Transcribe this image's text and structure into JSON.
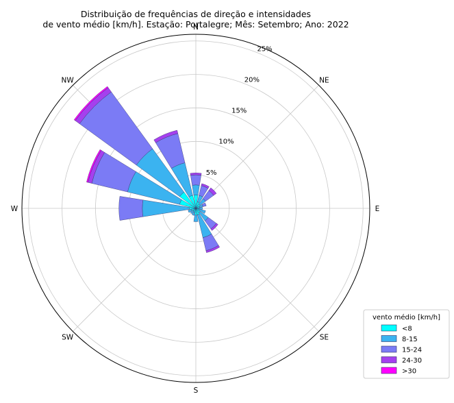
{
  "chart_data": {
    "type": "windrose",
    "title": "Distribuição de frequências de direção e intensidades\nde vento médio [km/h]. Estação: Portalegre; Mês: Setembro; Ano: 2022",
    "directions": [
      "N",
      "NNE",
      "NE",
      "ENE",
      "E",
      "ESE",
      "SE",
      "SSE",
      "S",
      "SSW",
      "SW",
      "WSW",
      "W",
      "WNW",
      "NW",
      "NNW"
    ],
    "direction_labels": [
      "N",
      "NE",
      "E",
      "SE",
      "S",
      "SW",
      "W",
      "NW"
    ],
    "radial_ticks": [
      5,
      10,
      15,
      20,
      25
    ],
    "radial_tick_labels": [
      "5%",
      "10%",
      "15%",
      "20%",
      "25%"
    ],
    "radial_max": 26,
    "grid": true,
    "legend": {
      "title": "vento médio [km/h]",
      "position": "bottom-right",
      "entries": [
        "<8",
        "8-15",
        "15-24",
        "24-30",
        ">30"
      ]
    },
    "series": [
      {
        "name": "<8",
        "color": "#00ffff",
        "values": [
          2.0,
          1.0,
          0.8,
          0.6,
          0.5,
          0.5,
          0.8,
          1.0,
          1.0,
          0.6,
          0.5,
          0.7,
          1.0,
          2.5,
          3.0,
          2.0
        ]
      },
      {
        "name": "8-15",
        "color": "#3bb3f0",
        "values": [
          1.5,
          1.0,
          1.0,
          0.5,
          0.5,
          1.0,
          1.5,
          3.5,
          1.0,
          0.5,
          0.5,
          0.5,
          7.0,
          8.0,
          8.0,
          5.0
        ]
      },
      {
        "name": "15-24",
        "color": "#7b7bf5",
        "values": [
          1.5,
          1.5,
          1.5,
          0.5,
          0.0,
          0.0,
          1.5,
          2.0,
          0.0,
          0.0,
          0.0,
          0.0,
          3.5,
          5.5,
          10.5,
          4.5
        ]
      },
      {
        "name": "24-30",
        "color": "#a540ee",
        "values": [
          0.3,
          0.3,
          0.5,
          0.0,
          0.0,
          0.0,
          0.3,
          0.3,
          0.0,
          0.0,
          0.0,
          0.0,
          0.0,
          0.6,
          0.8,
          0.5
        ]
      },
      {
        "name": ">30",
        "color": "#ff00ff",
        "values": [
          0.0,
          0.0,
          0.0,
          0.0,
          0.0,
          0.0,
          0.0,
          0.0,
          0.0,
          0.0,
          0.0,
          0.0,
          0.0,
          0.2,
          0.2,
          0.0
        ]
      }
    ]
  }
}
